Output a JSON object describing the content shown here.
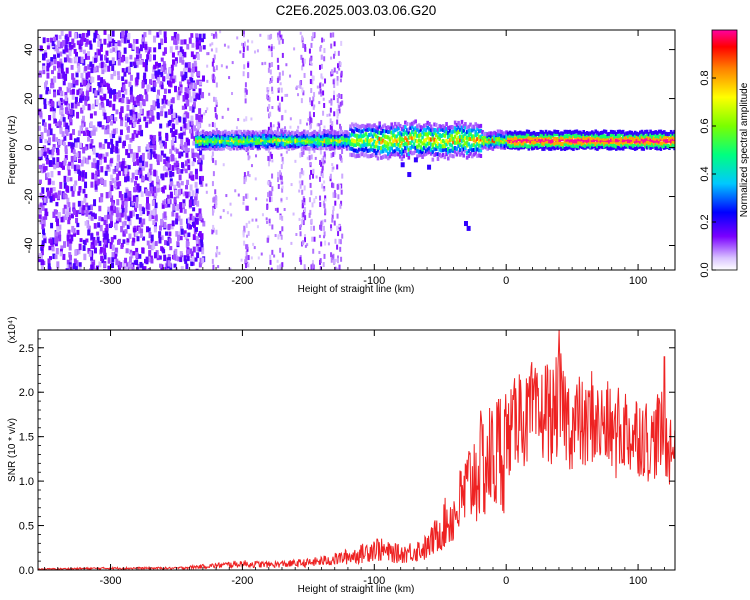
{
  "title": "C2E6.2025.003.03.06.G20",
  "chart_data": [
    {
      "type": "heatmap",
      "panel": "spectrogram",
      "xlabel": "Height of straight line (km)",
      "ylabel": "Frequency (Hz)",
      "xlim": [
        -355,
        128
      ],
      "ylim": [
        -50,
        48
      ],
      "x_ticks": [
        -300,
        -200,
        -100,
        0,
        100
      ],
      "x_tick_labels": [
        "-300",
        "-200",
        "-100",
        "0",
        "100"
      ],
      "y_ticks": [
        -40,
        -20,
        0,
        20,
        40
      ],
      "y_tick_labels": [
        "-40",
        "-20",
        "0",
        "20",
        "40"
      ],
      "colorbar": {
        "label": "Normalized spectral amplitude",
        "range": [
          0,
          1
        ],
        "ticks": [
          0.0,
          0.2,
          0.4,
          0.6,
          0.8
        ],
        "tick_labels": [
          "0.0",
          "0.2",
          "0.4",
          "0.6",
          "0.8"
        ],
        "colormap": [
          "#ffffff",
          "#c9a6ff",
          "#7a00ff",
          "#0000ff",
          "#00c8ff",
          "#00ff80",
          "#7aff00",
          "#ffff00",
          "#ff8000",
          "#ff0000",
          "#ff00a0"
        ]
      },
      "regions": [
        {
          "x_from": -355,
          "x_to": -230,
          "type": "broadband noise",
          "amplitude": 0.15
        },
        {
          "x_from": -230,
          "x_to": -125,
          "type": "sparse vertical streaks",
          "amplitude": 0.1
        },
        {
          "x_from": -235,
          "x_to": 128,
          "type": "carrier band",
          "freq_center_hz": 3,
          "amplitude_max": 1.0
        }
      ],
      "grid": false
    },
    {
      "type": "line",
      "panel": "snr",
      "xlabel": "Height of straight line (km)",
      "ylabel": "SNR (10 * v/v)",
      "y_multiplier_label": "(x10⁴)",
      "xlim": [
        -355,
        128
      ],
      "ylim": [
        0,
        2.7
      ],
      "x_ticks": [
        -300,
        -200,
        -100,
        0,
        100
      ],
      "x_tick_labels": [
        "-300",
        "-200",
        "-100",
        "0",
        "100"
      ],
      "y_ticks": [
        0.0,
        0.5,
        1.0,
        1.5,
        2.0,
        2.5
      ],
      "y_tick_labels": [
        "0.0",
        "0.5",
        "1.0",
        "1.5",
        "2.0",
        "2.5"
      ],
      "line_color": "#ee2222",
      "series": [
        {
          "x": [
            -355,
            -300,
            -250,
            -220,
            -200,
            -180,
            -150,
            -130,
            -110,
            -100,
            -90,
            -80,
            -60,
            -50,
            -45,
            -40,
            -35,
            -30,
            -25,
            -20,
            -15,
            -10,
            -5,
            0,
            5,
            10,
            15,
            20,
            25,
            30,
            35,
            40,
            45,
            50,
            55,
            60,
            65,
            70,
            75,
            80,
            85,
            90,
            95,
            100,
            105,
            110,
            115,
            120,
            125,
            128
          ],
          "y": [
            0.01,
            0.02,
            0.02,
            0.05,
            0.07,
            0.06,
            0.08,
            0.12,
            0.18,
            0.25,
            0.2,
            0.18,
            0.25,
            0.45,
            0.55,
            0.6,
            0.75,
            0.9,
            1.05,
            1.15,
            1.2,
            1.25,
            1.35,
            1.45,
            1.6,
            1.75,
            1.65,
            1.8,
            1.65,
            1.85,
            1.7,
            1.9,
            1.75,
            1.6,
            1.7,
            1.55,
            1.75,
            1.6,
            1.65,
            1.55,
            1.45,
            1.6,
            1.5,
            1.55,
            1.5,
            1.4,
            1.55,
            1.5,
            1.35,
            1.4
          ],
          "y_peaks": [
            {
              "x": 40,
              "y": 2.7
            },
            {
              "x": 120,
              "y": 2.4
            },
            {
              "x": 10,
              "y": 2.2
            },
            {
              "x": 85,
              "y": 2.05
            }
          ]
        }
      ],
      "grid": false
    }
  ]
}
